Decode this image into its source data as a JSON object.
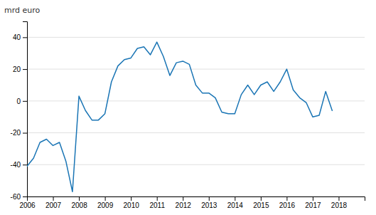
{
  "chart_data": {
    "type": "line",
    "ylabel": "mrd euro",
    "color": "#1a75b5",
    "x": [
      2006,
      2006.25,
      2006.5,
      2006.75,
      2007,
      2007.25,
      2007.5,
      2007.75,
      2008,
      2008.25,
      2008.5,
      2008.75,
      2009,
      2009.25,
      2009.5,
      2009.75,
      2010,
      2010.25,
      2010.5,
      2010.75,
      2011,
      2011.25,
      2011.5,
      2011.75,
      2012,
      2012.25,
      2012.5,
      2012.75,
      2013,
      2013.25,
      2013.5,
      2013.75,
      2014,
      2014.25,
      2014.5,
      2014.75,
      2015,
      2015.25,
      2015.5,
      2015.75,
      2016,
      2016.25,
      2016.5,
      2016.75,
      2017,
      2017.25,
      2017.5,
      2017.75
    ],
    "values": [
      -41,
      -36,
      -26,
      -24,
      -28,
      -26,
      -38,
      -57,
      3,
      -6,
      -12,
      -12,
      -8,
      12,
      22,
      26,
      27,
      33,
      34,
      29,
      37,
      28,
      16,
      24,
      25,
      23,
      10,
      5,
      5,
      2,
      -7,
      -8,
      -8,
      4,
      10,
      4,
      10,
      12,
      6,
      12,
      20,
      7,
      2,
      -1,
      -10,
      -9,
      6,
      -6
    ],
    "xlim": [
      2006,
      2019
    ],
    "xticks": [
      2006,
      2007,
      2008,
      2009,
      2010,
      2011,
      2012,
      2013,
      2014,
      2015,
      2016,
      2017,
      2018
    ],
    "ylim": [
      -60,
      50
    ],
    "yticks": [
      -60,
      -40,
      -20,
      0,
      20,
      40
    ],
    "grid": true
  }
}
